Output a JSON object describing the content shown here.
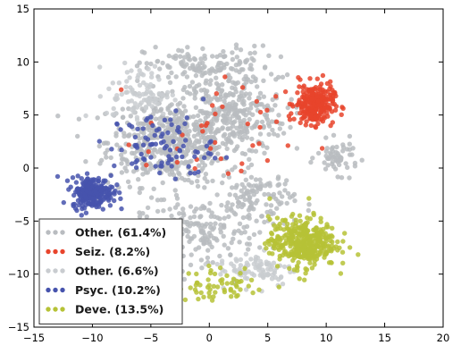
{
  "chart_data": {
    "type": "scatter",
    "xlim": [
      -15,
      20
    ],
    "ylim": [
      -15,
      15
    ],
    "x_ticks": [
      -15,
      -10,
      -5,
      0,
      5,
      10,
      15,
      20
    ],
    "y_ticks": [
      -15,
      -10,
      -5,
      0,
      5,
      10,
      15
    ],
    "x_tick_labels": [
      "−15",
      "−10",
      "−5",
      "0",
      "5",
      "10",
      "15",
      "20"
    ],
    "y_tick_labels": [
      "−15",
      "−10",
      "−5",
      "0",
      "5",
      "10",
      "15"
    ],
    "grid": false,
    "legend_position": "bottom-left",
    "series": [
      {
        "name": "Other. (61.4%)",
        "color": "#b9bcc0",
        "clusters": [
          {
            "cx": -3,
            "cy": 2.5,
            "sx": 5.2,
            "sy": 3.8,
            "n": 520
          },
          {
            "cx": 2,
            "cy": 5,
            "sx": 4.2,
            "sy": 3.4,
            "n": 260
          },
          {
            "cx": 0,
            "cy": 9.5,
            "sx": 5,
            "sy": 1.8,
            "n": 150
          },
          {
            "cx": -1,
            "cy": -6,
            "sx": 4.5,
            "sy": 2.6,
            "n": 170
          },
          {
            "cx": 4,
            "cy": -3,
            "sx": 3,
            "sy": 2.5,
            "n": 120
          },
          {
            "cx": 11,
            "cy": 1,
            "sx": 1.6,
            "sy": 1.4,
            "n": 60
          }
        ]
      },
      {
        "name": "Seiz. (8.2%)",
        "color": "#e8442c",
        "clusters": [
          {
            "cx": 9,
            "cy": 6,
            "sx": 1.5,
            "sy": 1.7,
            "n": 260
          },
          {
            "cx": 1,
            "cy": 3,
            "sx": 6,
            "sy": 5,
            "n": 40
          }
        ]
      },
      {
        "name": "Other. (6.6%)",
        "color": "#c9ccd0",
        "clusters": [
          {
            "cx": -6,
            "cy": 7,
            "sx": 2.5,
            "sy": 2.5,
            "n": 90
          },
          {
            "cx": 4,
            "cy": -9.5,
            "sx": 3,
            "sy": 1.5,
            "n": 90
          }
        ]
      },
      {
        "name": "Psyc. (10.2%)",
        "color": "#4653ad",
        "clusters": [
          {
            "cx": -10,
            "cy": -2.3,
            "sx": 1.6,
            "sy": 1.3,
            "n": 240
          },
          {
            "cx": -4,
            "cy": 2,
            "sx": 4,
            "sy": 3,
            "n": 90
          }
        ]
      },
      {
        "name": "Deve. (13.5%)",
        "color": "#b6c236",
        "clusters": [
          {
            "cx": 8,
            "cy": -7,
            "sx": 2.6,
            "sy": 2.1,
            "n": 380
          },
          {
            "cx": 1,
            "cy": -11,
            "sx": 3.5,
            "sy": 1.5,
            "n": 60
          }
        ]
      }
    ]
  }
}
